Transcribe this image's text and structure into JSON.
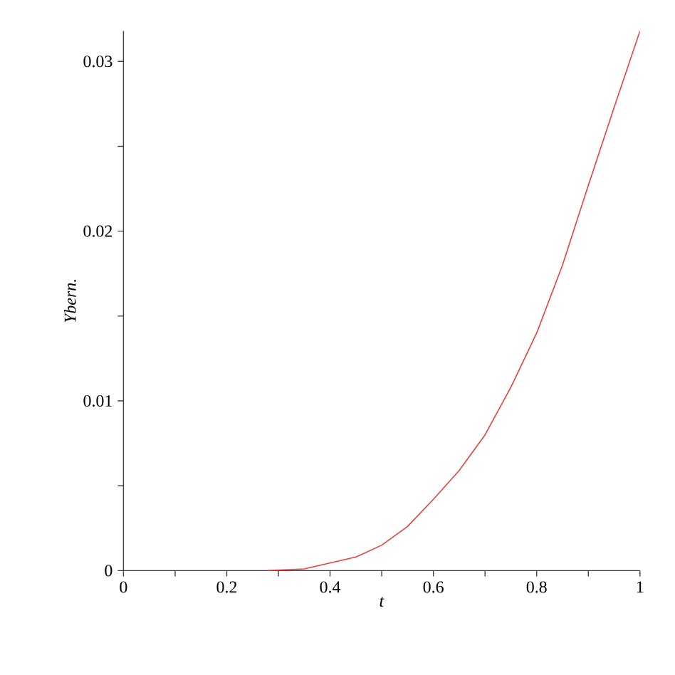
{
  "chart_data": {
    "type": "line",
    "xlabel": "*t*",
    "ylabel": "*Ybern.*",
    "x": [
      0.28,
      0.35,
      0.4,
      0.45,
      0.5,
      0.55,
      0.6,
      0.65,
      0.7,
      0.75,
      0.8,
      0.85,
      0.9,
      0.95,
      1.0
    ],
    "series": [
      {
        "color": "#e8413c",
        "values": [
          0,
          0.0001,
          0.00045,
          0.0008,
          0.0015,
          0.0026,
          0.0042,
          0.0059,
          0.008,
          0.0108,
          0.014,
          0.018,
          0.0227,
          0.0273,
          0.0318
        ]
      }
    ],
    "xlim": [
      0,
      1
    ],
    "ylim": [
      0,
      0.0318
    ],
    "xticks": [
      0,
      {
        "value": 0.1,
        "label": null
      },
      0.2,
      {
        "value": 0.3,
        "label": null
      },
      0.4,
      {
        "value": 0.5,
        "label": null
      },
      0.6,
      {
        "value": 0.7,
        "label": null
      },
      0.8,
      {
        "value": 0.9,
        "label": null
      },
      1
    ],
    "yticks": [
      0,
      {
        "value": 0.005,
        "label": null
      },
      0.01,
      {
        "value": 0.015,
        "label": null
      },
      0.02,
      {
        "value": 0.025,
        "label": null
      },
      0.03
    ],
    "grid": false,
    "marker": "none",
    "line_style": "solid"
  }
}
